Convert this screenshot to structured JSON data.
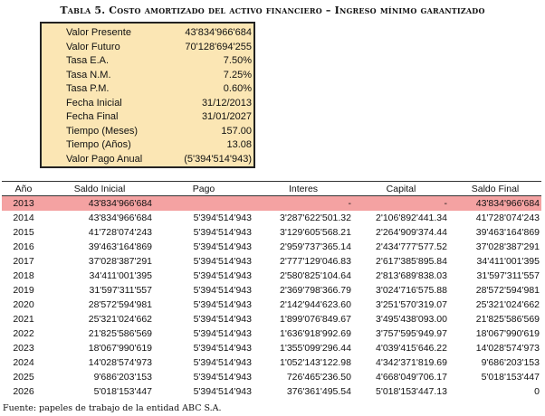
{
  "title": "Tabla 5. Costo amortizado del activo financiero – Ingreso mínimo garantizado",
  "params": [
    {
      "label": "Valor Presente",
      "value": "43'834'966'684"
    },
    {
      "label": "Valor Futuro",
      "value": "70'128'694'255"
    },
    {
      "label": "Tasa E.A.",
      "value": "7.50%"
    },
    {
      "label": "Tasa N.M.",
      "value": "7.25%"
    },
    {
      "label": "Tasa P.M.",
      "value": "0.60%"
    },
    {
      "label": "Fecha Inicial",
      "value": "31/12/2013"
    },
    {
      "label": "Fecha Final",
      "value": "31/01/2027"
    },
    {
      "label": "Tiempo (Meses)",
      "value": "157.00"
    },
    {
      "label": "Tiempo (Años)",
      "value": "13.08"
    },
    {
      "label": "Valor Pago Anual",
      "value": "(5'394'514'943)"
    }
  ],
  "table": {
    "headers": [
      "Año",
      "Saldo Inicial",
      "Pago",
      "Interes",
      "Capital",
      "Saldo Final"
    ],
    "rows": [
      [
        "2013",
        "43'834'966'684",
        "",
        "-",
        "-",
        "43'834'966'684"
      ],
      [
        "2014",
        "43'834'966'684",
        "5'394'514'943",
        "3'287'622'501.32",
        "2'106'892'441.34",
        "41'728'074'243"
      ],
      [
        "2015",
        "41'728'074'243",
        "5'394'514'943",
        "3'129'605'568.21",
        "2'264'909'374.44",
        "39'463'164'869"
      ],
      [
        "2016",
        "39'463'164'869",
        "5'394'514'943",
        "2'959'737'365.14",
        "2'434'777'577.52",
        "37'028'387'291"
      ],
      [
        "2017",
        "37'028'387'291",
        "5'394'514'943",
        "2'777'129'046.83",
        "2'617'385'895.84",
        "34'411'001'395"
      ],
      [
        "2018",
        "34'411'001'395",
        "5'394'514'943",
        "2'580'825'104.64",
        "2'813'689'838.03",
        "31'597'311'557"
      ],
      [
        "2019",
        "31'597'311'557",
        "5'394'514'943",
        "2'369'798'366.79",
        "3'024'716'575.88",
        "28'572'594'981"
      ],
      [
        "2020",
        "28'572'594'981",
        "5'394'514'943",
        "2'142'944'623.60",
        "3'251'570'319.07",
        "25'321'024'662"
      ],
      [
        "2021",
        "25'321'024'662",
        "5'394'514'943",
        "1'899'076'849.67",
        "3'495'438'093.00",
        "21'825'586'569"
      ],
      [
        "2022",
        "21'825'586'569",
        "5'394'514'943",
        "1'636'918'992.69",
        "3'757'595'949.97",
        "18'067'990'619"
      ],
      [
        "2023",
        "18'067'990'619",
        "5'394'514'943",
        "1'355'099'296.44",
        "4'039'415'646.22",
        "14'028'574'973"
      ],
      [
        "2024",
        "14'028'574'973",
        "5'394'514'943",
        "1'052'143'122.98",
        "4'342'371'819.69",
        "9'686'203'153"
      ],
      [
        "2025",
        "9'686'203'153",
        "5'394'514'943",
        "726'465'236.50",
        "4'668'049'706.17",
        "5'018'153'447"
      ],
      [
        "2026",
        "5'018'153'447",
        "5'394'514'943",
        "376'361'495.54",
        "5'018'153'447.13",
        "0"
      ]
    ]
  },
  "source": "Fuente: papeles de trabajo de la entidad ABC S.A.",
  "colors": {
    "param_bg": "#fbe6b4",
    "highlight_row": "#f4a2a2"
  }
}
